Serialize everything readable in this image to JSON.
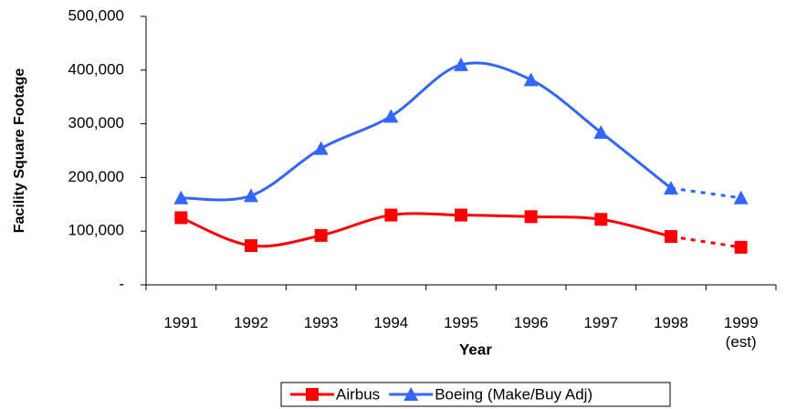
{
  "chart_data": {
    "type": "line",
    "xlabel": "Year",
    "ylabel": "Facility Square Footage",
    "categories": [
      "1991",
      "1992",
      "1993",
      "1994",
      "1995",
      "1996",
      "1997",
      "1998",
      "1999 (est)"
    ],
    "series": [
      {
        "name": "Airbus",
        "color": "#ff0000",
        "marker": "square",
        "values": [
          125000,
          73000,
          92000,
          130000,
          130000,
          127000,
          122000,
          90000,
          70000
        ]
      },
      {
        "name": "Boeing (Make/Buy Adj)",
        "color": "#3366ff",
        "marker": "triangle",
        "values": [
          162000,
          166000,
          254000,
          314000,
          410000,
          382000,
          284000,
          180000,
          162000
        ]
      }
    ],
    "ylim": [
      0,
      500000
    ],
    "yticks": [
      {
        "value": 0,
        "label": "-"
      },
      {
        "value": 100000,
        "label": "100,000"
      },
      {
        "value": 200000,
        "label": "200,000"
      },
      {
        "value": 300000,
        "label": "300,000"
      },
      {
        "value": 400000,
        "label": "400,000"
      },
      {
        "value": 500000,
        "label": "500,000"
      }
    ],
    "smooth": true,
    "dashed_last_segment": true,
    "legend": "bottom"
  }
}
